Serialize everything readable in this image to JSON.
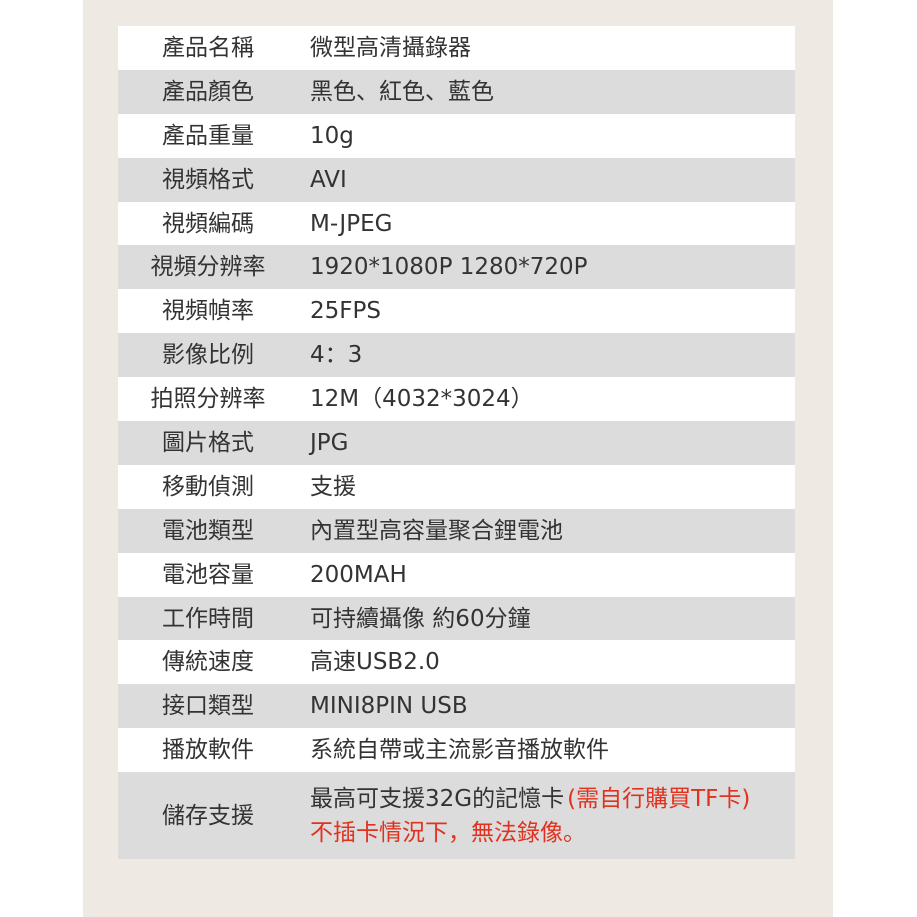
{
  "rows": [
    {
      "label": "產品名稱",
      "value": "微型高清攝錄器"
    },
    {
      "label": "產品顏色",
      "value": "黑色、紅色、藍色"
    },
    {
      "label": "產品重量",
      "value": "10g"
    },
    {
      "label": "視頻格式",
      "value": "AVI"
    },
    {
      "label": "視頻編碼",
      "value": "M-JPEG"
    },
    {
      "label": "視頻分辨率",
      "value": "1920*1080P   1280*720P"
    },
    {
      "label": "視頻幀率",
      "value": "25FPS"
    },
    {
      "label": "影像比例",
      "value": "4：3"
    },
    {
      "label": "拍照分辨率",
      "value": "12M（4032*3024）"
    },
    {
      "label": "圖片格式",
      "value": "JPG"
    },
    {
      "label": "移動偵測",
      "value": "支援"
    },
    {
      "label": "電池類型",
      "value": "內置型高容量聚合鋰電池"
    },
    {
      "label": "電池容量",
      "value": "200MAH"
    },
    {
      "label": "工作時間",
      "value": "可持續攝像 約60分鐘"
    },
    {
      "label": "傳統速度",
      "value": "高速USB2.0"
    },
    {
      "label": "接口類型",
      "value": "MINI8PIN USB"
    },
    {
      "label": "播放軟件",
      "value": "系統自帶或主流影音播放軟件"
    }
  ],
  "storage": {
    "label": "儲存支援",
    "line1": "最高可支援32G的記憶卡",
    "line1_note": "(需自行購買TF卡)",
    "line2": "不插卡情況下，無法錄像。"
  },
  "colors": {
    "note": "#e0321e",
    "stripe": "#dcdcdc",
    "panel": "#eeeae3"
  }
}
